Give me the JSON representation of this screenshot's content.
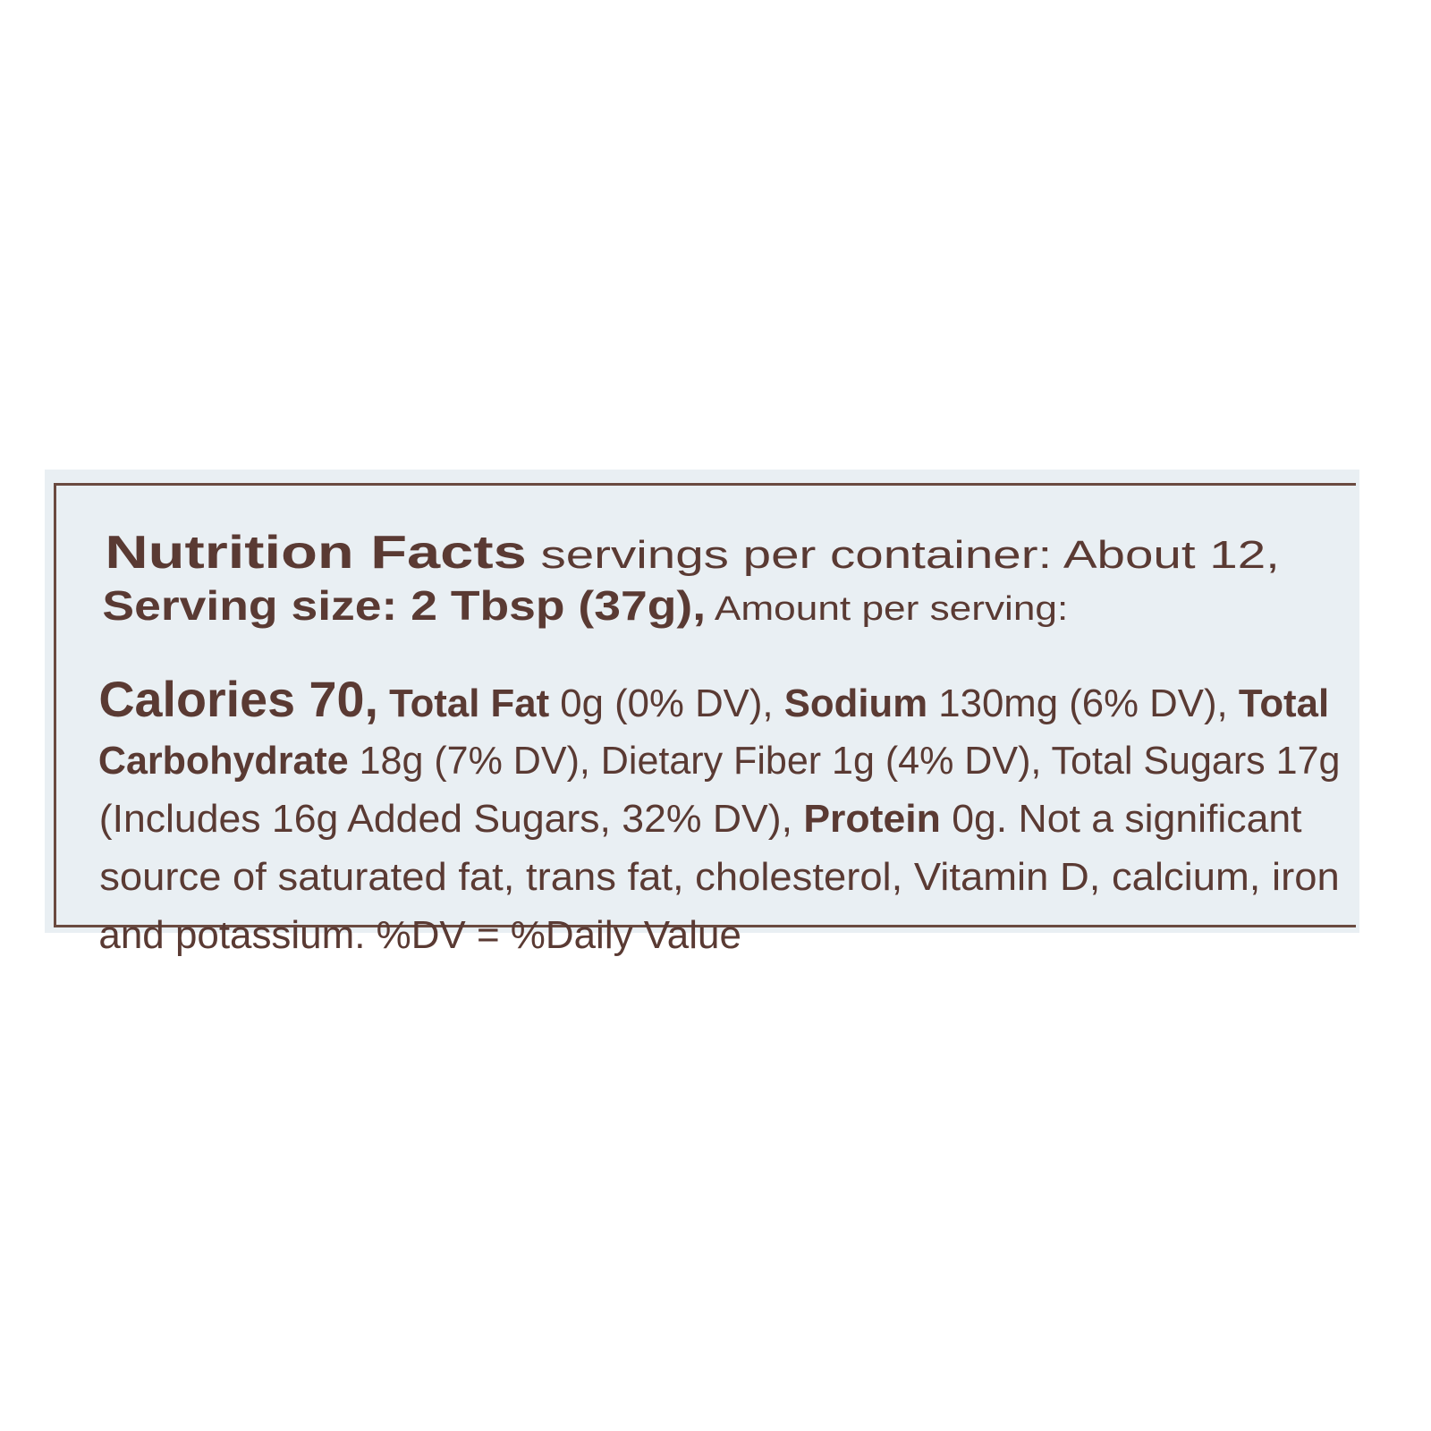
{
  "label": {
    "title": "Nutrition Facts",
    "servings": " servings per container: About 12,",
    "serving_size": "Serving size: 2 Tbsp (37g),",
    "amount_per_serving": " Amount per serving:",
    "calories": "Calories 70,",
    "total_fat_label": "Total Fat",
    "total_fat_value": " 0g (0% DV), ",
    "sodium_label": "Sodium",
    "sodium_value": " 130mg (6% DV), ",
    "total_carb_label_1": "Total",
    "total_carb_label_2": "Carbohydrate",
    "carb_rest": " 18g (7% DV), Dietary Fiber 1g (4% DV), Total Sugars 17g",
    "added_sugars": "(Includes 16g Added Sugars, 32% DV), ",
    "protein_label": "Protein",
    "protein_value": " 0g. Not a significant",
    "line6": "source of saturated fat, trans fat, cholesterol, Vitamin D, calcium, iron",
    "line7": "and potassium. %DV = %Daily Value"
  },
  "colors": {
    "text": "#5a3a33",
    "panel": "#e9eff3",
    "border": "#6a4a40"
  }
}
